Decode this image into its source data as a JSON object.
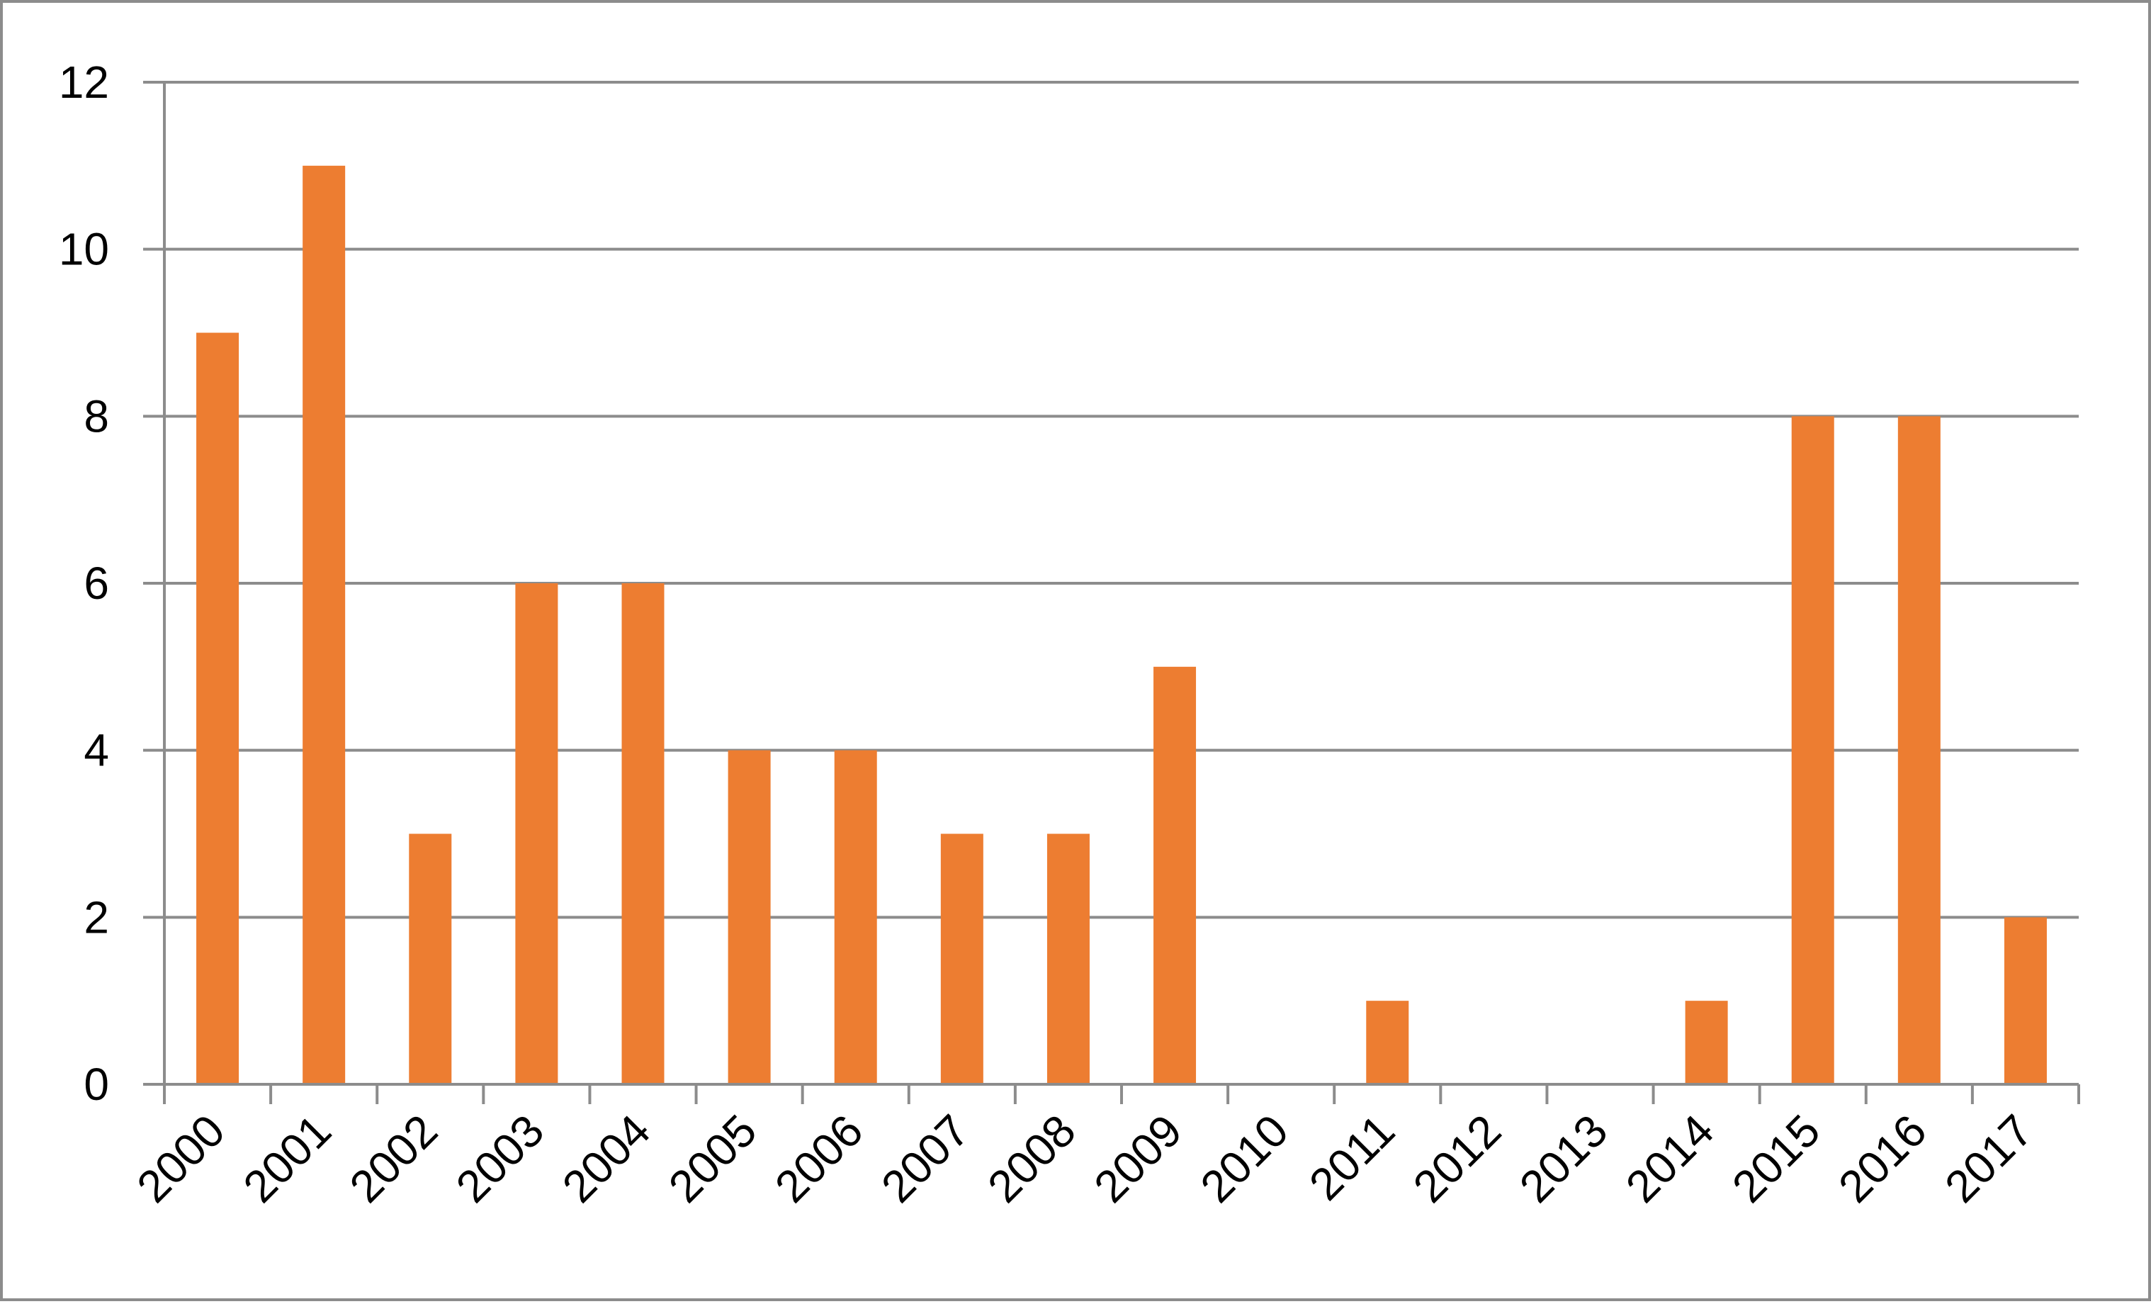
{
  "chart_data": {
    "type": "bar",
    "title": "",
    "xlabel": "",
    "ylabel": "",
    "categories": [
      "2000",
      "2001",
      "2002",
      "2003",
      "2004",
      "2005",
      "2006",
      "2007",
      "2008",
      "2009",
      "2010",
      "2011",
      "2012",
      "2013",
      "2014",
      "2015",
      "2016",
      "2017"
    ],
    "values": [
      9,
      11,
      3,
      6,
      6,
      4,
      4,
      3,
      3,
      5,
      0,
      1,
      0,
      0,
      1,
      8,
      8,
      2
    ],
    "ylim": [
      0,
      12
    ],
    "yticks": [
      "0",
      "2",
      "4",
      "6",
      "8",
      "10",
      "12"
    ],
    "grid": true,
    "legend": "none",
    "colors": {
      "bar": "#ED7D31",
      "grid": "#8c8c8c",
      "axis": "#8c8c8c"
    }
  }
}
